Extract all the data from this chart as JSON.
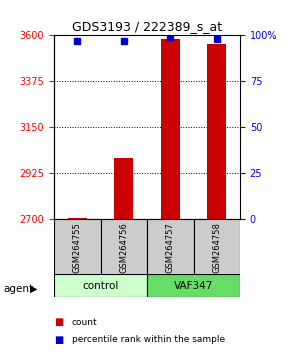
{
  "title": "GDS3193 / 222389_s_at",
  "samples": [
    "GSM264755",
    "GSM264756",
    "GSM264757",
    "GSM264758"
  ],
  "counts": [
    2707,
    3000,
    3580,
    3560
  ],
  "percentile_ranks": [
    97,
    97,
    99,
    98
  ],
  "ylim_left": [
    2700,
    3600
  ],
  "yticks_left": [
    2700,
    2925,
    3150,
    3375,
    3600
  ],
  "yticks_right": [
    0,
    25,
    50,
    75,
    100
  ],
  "ylim_right": [
    0,
    100
  ],
  "bar_color": "#cc0000",
  "dot_color": "#0000cc",
  "groups": [
    {
      "label": "control",
      "samples": [
        0,
        1
      ],
      "color": "#ccffcc"
    },
    {
      "label": "VAF347",
      "samples": [
        2,
        3
      ],
      "color": "#66dd66"
    }
  ],
  "group_label_prefix": "agent",
  "legend_items": [
    {
      "label": "count",
      "color": "#cc0000"
    },
    {
      "label": "percentile rank within the sample",
      "color": "#0000cc"
    }
  ],
  "grid_color": "#000000",
  "sample_box_color": "#cccccc",
  "background_color": "#ffffff"
}
